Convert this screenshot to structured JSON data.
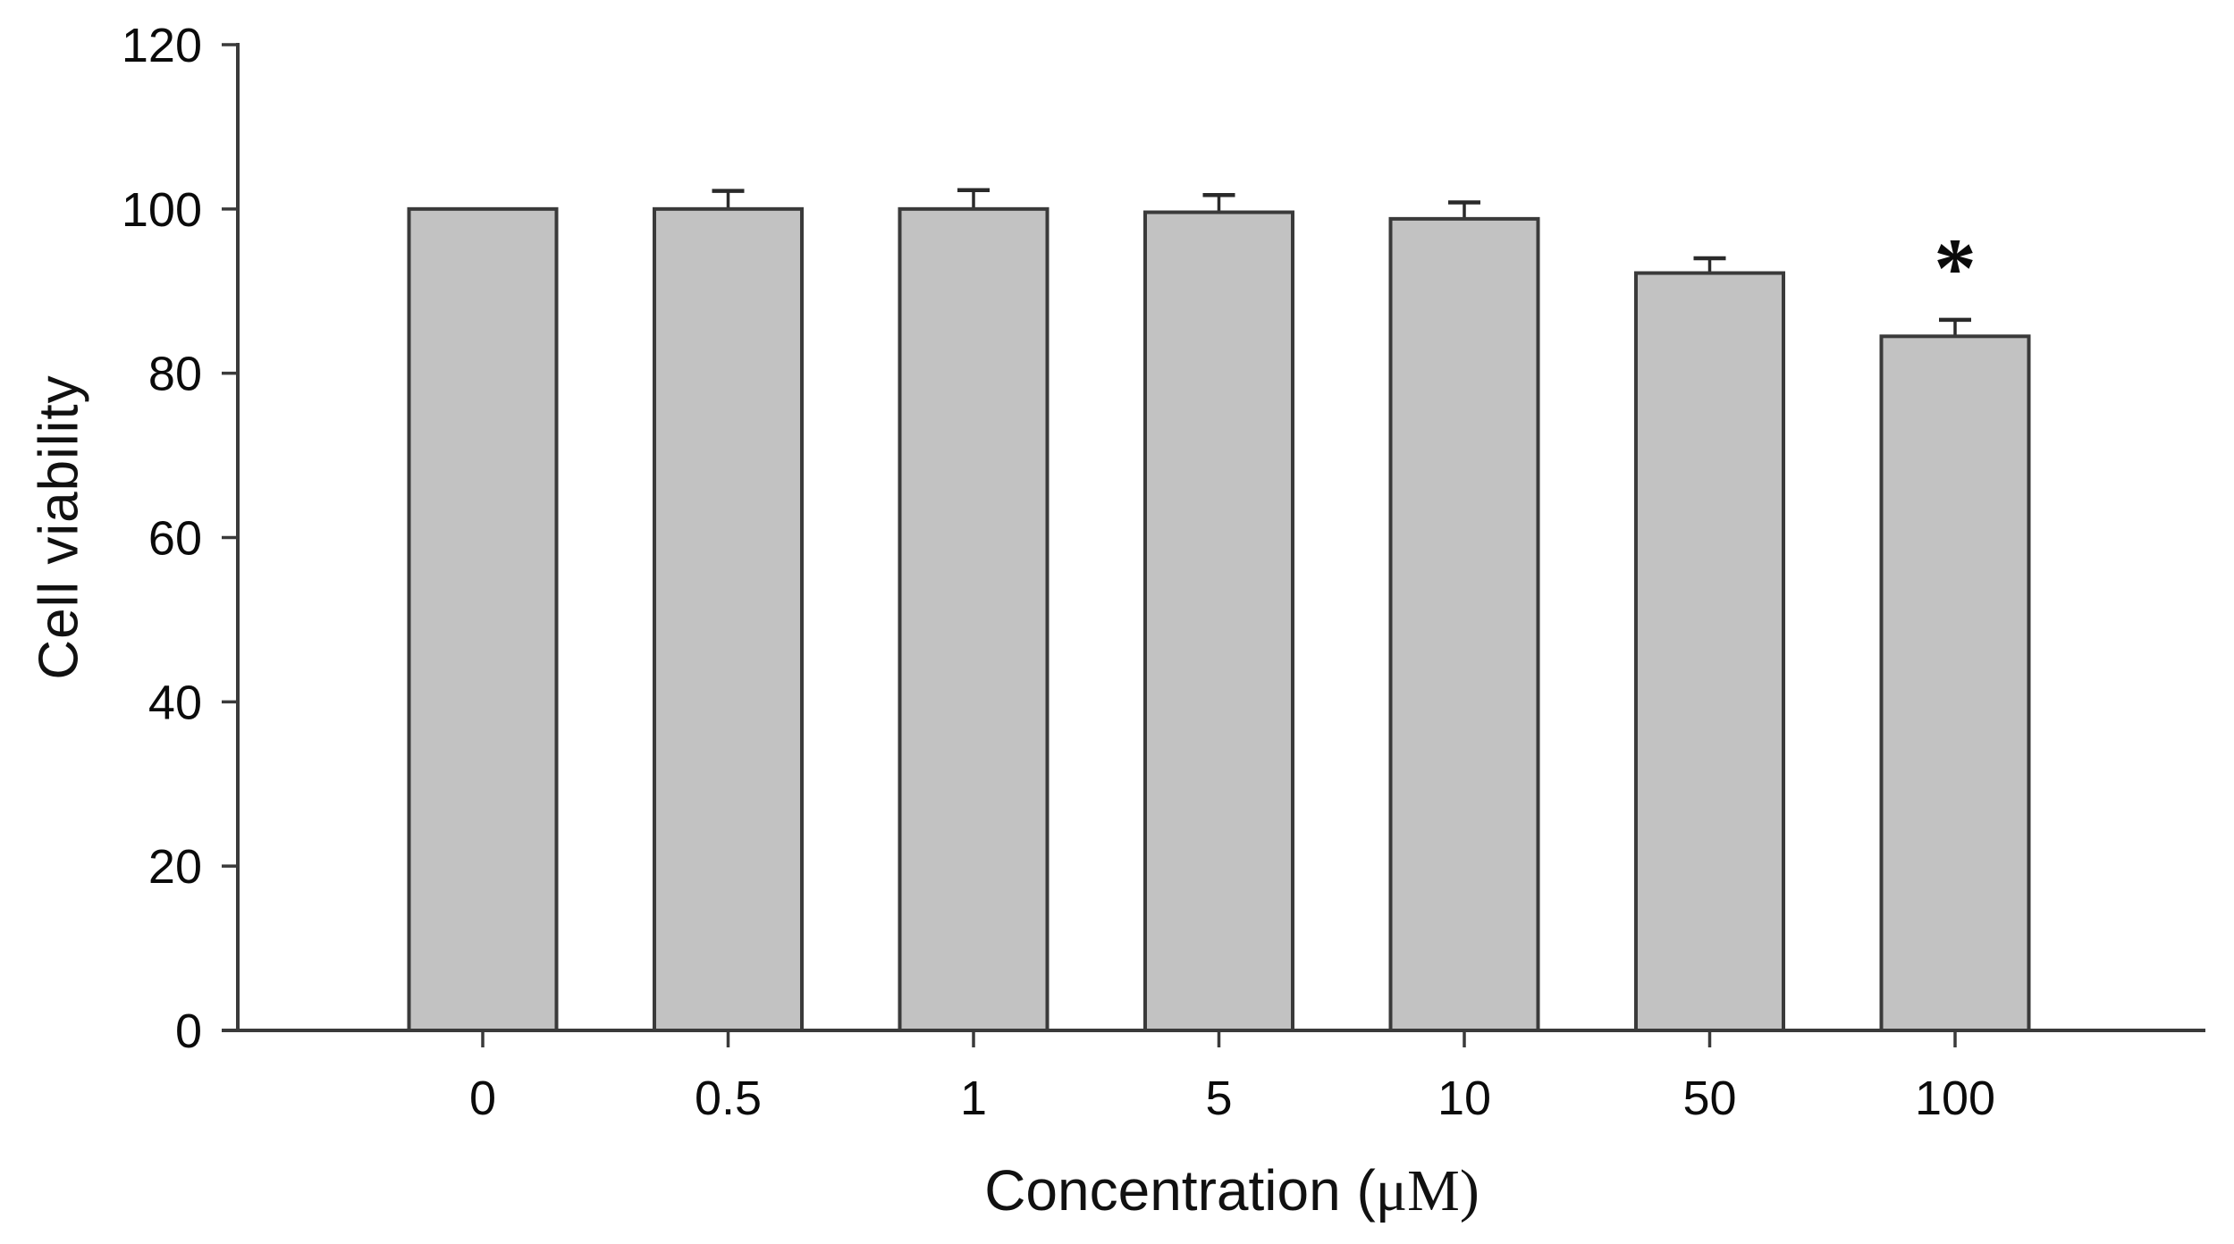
{
  "chart_data": {
    "type": "bar",
    "title": "",
    "categories": [
      "0",
      "0.5",
      "1",
      "5",
      "10",
      "50",
      "100"
    ],
    "values": [
      100,
      100,
      100,
      99.6,
      98.8,
      92.2,
      84.5
    ],
    "errors": [
      0,
      2.2,
      2.3,
      2.1,
      2.0,
      1.8,
      2.0
    ],
    "significance": [
      "",
      "",
      "",
      "",
      "",
      "",
      "*"
    ],
    "xlabel": "Concentration (μM)",
    "xlabel_parts": {
      "pre": "Concentration (",
      "unit": "μM)"
    },
    "ylabel": "Cell viability",
    "ylim": [
      0,
      120
    ],
    "yticks": [
      0,
      20,
      40,
      60,
      80,
      100,
      120
    ],
    "grid": false,
    "legend": "none",
    "colors": {
      "bar_fill": "#c2c2c2",
      "bar_border": "#3a3a3a",
      "axis": "#3a3a3a",
      "error_bar": "#2a2a2a",
      "text": "#0b0b0b"
    }
  }
}
